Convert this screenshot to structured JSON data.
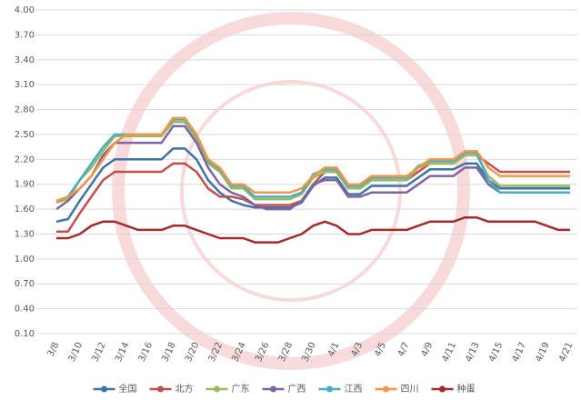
{
  "chart_data": {
    "type": "line",
    "categories": [
      "3/8",
      null,
      "3/10",
      null,
      "3/12",
      null,
      "3/14",
      null,
      "3/16",
      null,
      "3/18",
      null,
      "3/20",
      null,
      "3/22",
      null,
      "3/24",
      null,
      "3/26",
      null,
      "3/28",
      null,
      "3/30",
      null,
      "4/1",
      null,
      "4/3",
      null,
      "4/5",
      null,
      "4/7",
      null,
      "4/9",
      null,
      "4/11",
      null,
      "4/13",
      null,
      "4/15",
      null,
      "4/17",
      null,
      "4/19",
      null,
      "4/21"
    ],
    "ylim": [
      0.1,
      4.0
    ],
    "yticks": [
      {
        "value": 0.1,
        "label": "0.10"
      },
      {
        "value": 0.4,
        "label": "0.40"
      },
      {
        "value": 0.7,
        "label": "0.70"
      },
      {
        "value": 1.0,
        "label": "1.00"
      },
      {
        "value": 1.3,
        "label": "1.30"
      },
      {
        "value": 1.6,
        "label": "1.60"
      },
      {
        "value": 1.9,
        "label": "1.90"
      },
      {
        "value": 2.2,
        "label": "2.20"
      },
      {
        "value": 2.5,
        "label": "2.50"
      },
      {
        "value": 2.8,
        "label": "2.80"
      },
      {
        "value": 3.1,
        "label": "3.10"
      },
      {
        "value": 3.4,
        "label": "3.40"
      },
      {
        "value": 3.7,
        "label": "3.70"
      },
      {
        "value": 4.0,
        "label": "4.00"
      }
    ],
    "grid": true,
    "series": [
      {
        "name": "全国",
        "color": "#3f72a6",
        "values": [
          1.45,
          1.48,
          1.7,
          1.9,
          2.1,
          2.2,
          2.2,
          2.2,
          2.2,
          2.2,
          2.33,
          2.33,
          2.2,
          1.95,
          1.8,
          1.7,
          1.65,
          1.62,
          1.62,
          1.62,
          1.62,
          1.68,
          1.88,
          1.98,
          1.98,
          1.78,
          1.78,
          1.88,
          1.88,
          1.88,
          1.88,
          1.98,
          2.08,
          2.08,
          2.08,
          2.15,
          2.15,
          1.95,
          1.85,
          1.85,
          1.85,
          1.85,
          1.85,
          1.85,
          1.85
        ]
      },
      {
        "name": "北方",
        "color": "#c0504d",
        "values": [
          1.33,
          1.33,
          1.55,
          1.75,
          1.95,
          2.05,
          2.05,
          2.05,
          2.05,
          2.05,
          2.15,
          2.15,
          2.05,
          1.85,
          1.75,
          1.75,
          1.72,
          1.65,
          1.65,
          1.65,
          1.65,
          1.7,
          1.9,
          2.05,
          2.05,
          1.85,
          1.85,
          1.95,
          1.95,
          1.95,
          1.95,
          2.05,
          2.15,
          2.15,
          2.15,
          2.25,
          2.25,
          2.15,
          2.05,
          2.05,
          2.05,
          2.05,
          2.05,
          2.05,
          2.05
        ]
      },
      {
        "name": "广东",
        "color": "#9bbb59",
        "values": [
          1.68,
          1.72,
          1.95,
          2.1,
          2.3,
          2.48,
          2.48,
          2.48,
          2.48,
          2.48,
          2.65,
          2.65,
          2.45,
          2.15,
          2.05,
          1.85,
          1.85,
          1.72,
          1.72,
          1.72,
          1.72,
          1.78,
          1.98,
          2.05,
          2.05,
          1.85,
          1.85,
          1.95,
          1.95,
          1.95,
          1.95,
          2.1,
          2.15,
          2.15,
          2.15,
          2.25,
          2.25,
          2.0,
          1.88,
          1.88,
          1.88,
          1.88,
          1.88,
          1.88,
          1.88
        ]
      },
      {
        "name": "广西",
        "color": "#8064a2",
        "values": [
          1.6,
          1.7,
          1.85,
          2.0,
          2.25,
          2.4,
          2.4,
          2.4,
          2.4,
          2.4,
          2.6,
          2.6,
          2.4,
          2.1,
          1.9,
          1.8,
          1.75,
          1.65,
          1.6,
          1.6,
          1.6,
          1.7,
          1.9,
          1.95,
          1.95,
          1.75,
          1.75,
          1.8,
          1.8,
          1.8,
          1.8,
          1.9,
          2.0,
          2.0,
          2.0,
          2.1,
          2.1,
          1.9,
          1.8,
          1.8,
          1.8,
          1.8,
          1.8,
          1.8,
          1.8
        ]
      },
      {
        "name": "江西",
        "color": "#4bacc6",
        "values": [
          1.7,
          1.75,
          1.95,
          2.15,
          2.35,
          2.5,
          2.5,
          2.5,
          2.5,
          2.5,
          2.68,
          2.68,
          2.48,
          2.18,
          2.08,
          1.88,
          1.88,
          1.75,
          1.75,
          1.75,
          1.75,
          1.8,
          2.02,
          2.08,
          2.08,
          1.88,
          1.88,
          1.98,
          1.98,
          1.98,
          1.98,
          2.12,
          2.18,
          2.18,
          2.18,
          2.28,
          2.28,
          1.95,
          1.8,
          1.8,
          1.8,
          1.8,
          1.8,
          1.8,
          1.8
        ]
      },
      {
        "name": "四川",
        "color": "#f79646",
        "values": [
          1.7,
          1.75,
          1.85,
          2.0,
          2.2,
          2.4,
          2.5,
          2.5,
          2.5,
          2.5,
          2.7,
          2.7,
          2.5,
          2.2,
          2.1,
          1.9,
          1.9,
          1.8,
          1.8,
          1.8,
          1.8,
          1.85,
          2.0,
          2.1,
          2.1,
          1.9,
          1.9,
          2.0,
          2.0,
          2.0,
          2.0,
          2.1,
          2.2,
          2.2,
          2.2,
          2.3,
          2.3,
          2.1,
          2.0,
          2.0,
          2.0,
          2.0,
          2.0,
          2.0,
          2.0
        ]
      },
      {
        "name": "种蛋",
        "color": "#a52a2e",
        "values": [
          1.25,
          1.25,
          1.3,
          1.4,
          1.45,
          1.45,
          1.4,
          1.35,
          1.35,
          1.35,
          1.4,
          1.4,
          1.35,
          1.3,
          1.25,
          1.25,
          1.25,
          1.2,
          1.2,
          1.2,
          1.25,
          1.3,
          1.4,
          1.45,
          1.4,
          1.3,
          1.3,
          1.35,
          1.35,
          1.35,
          1.35,
          1.4,
          1.45,
          1.45,
          1.45,
          1.5,
          1.5,
          1.45,
          1.45,
          1.45,
          1.45,
          1.45,
          1.4,
          1.35,
          1.35
        ]
      }
    ]
  }
}
